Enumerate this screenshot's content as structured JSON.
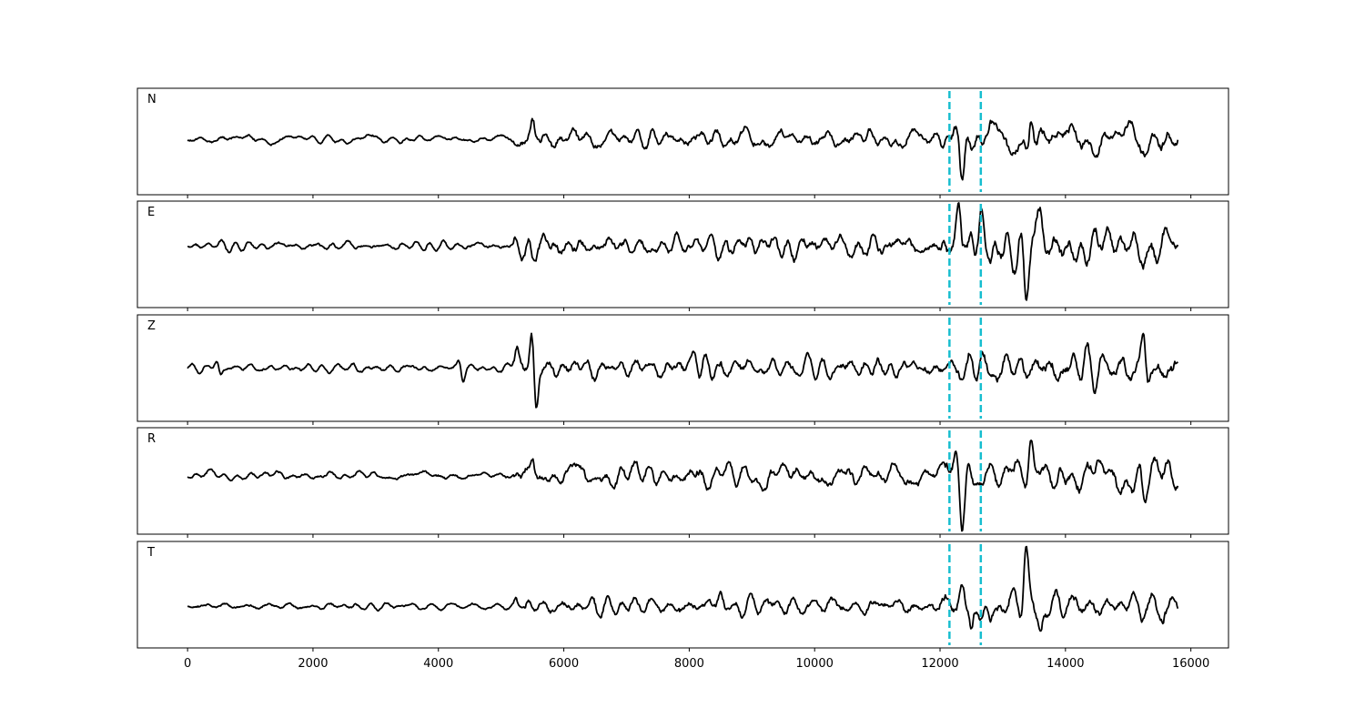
{
  "chart_data": {
    "type": "line",
    "title": "",
    "xlabel": "",
    "ylabel": "",
    "xlim": [
      -800,
      16600
    ],
    "x_ticks": [
      0,
      2000,
      4000,
      6000,
      8000,
      10000,
      12000,
      14000,
      16000
    ],
    "x_tick_labels": [
      "0",
      "2000",
      "4000",
      "6000",
      "8000",
      "10000",
      "12000",
      "14000",
      "16000"
    ],
    "sample_count": 15800,
    "grid": false,
    "legend": "none",
    "colors": {
      "trace": "#000000",
      "marker": "#17becf",
      "frame": "#000000"
    },
    "vertical_markers": [
      {
        "x": 12150,
        "style": "dashed"
      },
      {
        "x": 12650,
        "style": "dashed"
      }
    ],
    "panels": [
      {
        "label": "N",
        "ylim": [
          -1.1,
          1.0
        ],
        "trace_description": "noise until ~5200, moderate oscillations after; large negative spike near 12350; positive spike near 13450",
        "events": [
          {
            "x": 5500,
            "y": 0.35
          },
          {
            "x": 12250,
            "y": 0.35
          },
          {
            "x": 12350,
            "y": -1.0
          },
          {
            "x": 12450,
            "y": 0.4
          },
          {
            "x": 13450,
            "y": 0.75
          },
          {
            "x": 13400,
            "y": -0.45
          }
        ]
      },
      {
        "label": "E",
        "ylim": [
          -1.1,
          0.8
        ],
        "trace_description": "noise until ~5200, moderate oscillations after; peaks near 12300 and 12650; large negative spike near 13370",
        "events": [
          {
            "x": 5500,
            "y": -0.3
          },
          {
            "x": 12300,
            "y": 0.7
          },
          {
            "x": 12450,
            "y": -0.4
          },
          {
            "x": 12650,
            "y": 0.6
          },
          {
            "x": 13370,
            "y": -1.0
          },
          {
            "x": 13600,
            "y": 0.45
          }
        ]
      },
      {
        "label": "Z",
        "ylim": [
          -1.0,
          1.0
        ],
        "trace_description": "small spike at ~500, ~4350; large oscillation at ~5500; moderate after; peak near 15250",
        "events": [
          {
            "x": 480,
            "y": 0.25
          },
          {
            "x": 510,
            "y": -0.25
          },
          {
            "x": 4350,
            "y": 0.3
          },
          {
            "x": 4380,
            "y": -0.35
          },
          {
            "x": 5250,
            "y": 0.4
          },
          {
            "x": 5500,
            "y": 0.9
          },
          {
            "x": 5550,
            "y": -0.95
          },
          {
            "x": 8100,
            "y": 0.4
          },
          {
            "x": 15250,
            "y": 0.55
          },
          {
            "x": 15300,
            "y": -0.4
          }
        ]
      },
      {
        "label": "R",
        "ylim": [
          -1.1,
          0.9
        ],
        "trace_description": "similar to N: negative spike near 12350; positive spike near 13450",
        "events": [
          {
            "x": 5500,
            "y": 0.4
          },
          {
            "x": 12250,
            "y": 0.35
          },
          {
            "x": 12350,
            "y": -1.0
          },
          {
            "x": 12450,
            "y": 0.5
          },
          {
            "x": 13450,
            "y": 0.75
          },
          {
            "x": 15250,
            "y": -0.45
          }
        ]
      },
      {
        "label": "T",
        "ylim": [
          -0.9,
          1.4
        ],
        "trace_description": "noise until ~5200, moderate oscillations; spikes near 12450 and large positive spike near 13370",
        "events": [
          {
            "x": 8500,
            "y": 0.35
          },
          {
            "x": 12350,
            "y": 0.45
          },
          {
            "x": 12500,
            "y": -0.55
          },
          {
            "x": 12800,
            "y": -0.4
          },
          {
            "x": 13370,
            "y": 1.25
          },
          {
            "x": 13600,
            "y": -0.5
          }
        ]
      }
    ]
  }
}
